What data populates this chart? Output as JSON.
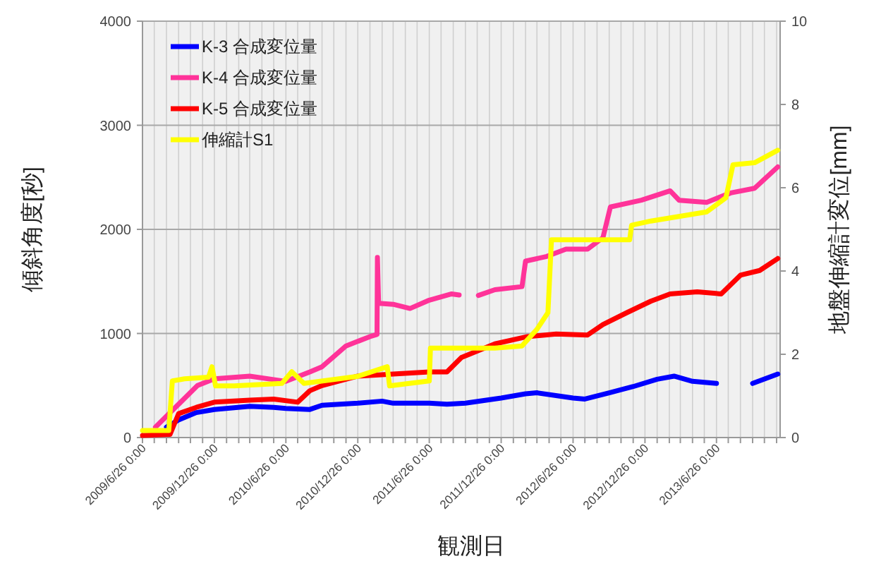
{
  "chart_data": {
    "type": "line",
    "xlabel": "観測日",
    "ylabel": "傾斜角度[秒]",
    "y2label": "地盤伸縮計変位[mm]",
    "xlim": [
      "2009-06-26",
      "2013-12-05"
    ],
    "xticks": [
      {
        "value": "2009-06-26",
        "label": "2009/6/26 0:00"
      },
      {
        "value": "2009-07-26",
        "label": null
      },
      {
        "value": "2009-08-26",
        "label": null
      },
      {
        "value": "2009-09-26",
        "label": null
      },
      {
        "value": "2009-10-26",
        "label": null
      },
      {
        "value": "2009-11-26",
        "label": null
      },
      {
        "value": "2009-12-26",
        "label": "2009/12/26 0:00"
      },
      {
        "value": "2010-01-26",
        "label": null
      },
      {
        "value": "2010-02-26",
        "label": null
      },
      {
        "value": "2010-03-26",
        "label": null
      },
      {
        "value": "2010-04-26",
        "label": null
      },
      {
        "value": "2010-05-26",
        "label": null
      },
      {
        "value": "2010-06-26",
        "label": "2010/6/26 0:00"
      },
      {
        "value": "2010-07-26",
        "label": null
      },
      {
        "value": "2010-08-26",
        "label": null
      },
      {
        "value": "2010-09-26",
        "label": null
      },
      {
        "value": "2010-10-26",
        "label": null
      },
      {
        "value": "2010-11-26",
        "label": null
      },
      {
        "value": "2010-12-26",
        "label": "2010/12/26 0:00"
      },
      {
        "value": "2011-01-26",
        "label": null
      },
      {
        "value": "2011-02-26",
        "label": null
      },
      {
        "value": "2011-03-26",
        "label": null
      },
      {
        "value": "2011-04-26",
        "label": null
      },
      {
        "value": "2011-05-26",
        "label": null
      },
      {
        "value": "2011-06-26",
        "label": "2011/6/26 0:00"
      },
      {
        "value": "2011-07-26",
        "label": null
      },
      {
        "value": "2011-08-26",
        "label": null
      },
      {
        "value": "2011-09-26",
        "label": null
      },
      {
        "value": "2011-10-26",
        "label": null
      },
      {
        "value": "2011-11-26",
        "label": null
      },
      {
        "value": "2011-12-26",
        "label": "2011/12/26 0:00"
      },
      {
        "value": "2012-01-26",
        "label": null
      },
      {
        "value": "2012-02-26",
        "label": null
      },
      {
        "value": "2012-03-26",
        "label": null
      },
      {
        "value": "2012-04-26",
        "label": null
      },
      {
        "value": "2012-05-26",
        "label": null
      },
      {
        "value": "2012-06-26",
        "label": "2012/6/26 0:00"
      },
      {
        "value": "2012-07-26",
        "label": null
      },
      {
        "value": "2012-08-26",
        "label": null
      },
      {
        "value": "2012-09-26",
        "label": null
      },
      {
        "value": "2012-10-26",
        "label": null
      },
      {
        "value": "2012-11-26",
        "label": null
      },
      {
        "value": "2012-12-26",
        "label": "2012/12/26 0:00"
      },
      {
        "value": "2013-01-26",
        "label": null
      },
      {
        "value": "2013-02-26",
        "label": null
      },
      {
        "value": "2013-03-26",
        "label": null
      },
      {
        "value": "2013-04-26",
        "label": null
      },
      {
        "value": "2013-05-26",
        "label": null
      },
      {
        "value": "2013-06-26",
        "label": "2013/6/26 0:00"
      },
      {
        "value": "2013-07-26",
        "label": null
      },
      {
        "value": "2013-08-26",
        "label": null
      },
      {
        "value": "2013-09-26",
        "label": null
      },
      {
        "value": "2013-10-26",
        "label": null
      },
      {
        "value": "2013-11-26",
        "label": null
      }
    ],
    "ylim": [
      0,
      4000
    ],
    "yticks": [
      0,
      1000,
      2000,
      3000,
      4000
    ],
    "y2lim": [
      0,
      10
    ],
    "y2ticks": [
      0,
      2,
      4,
      6,
      8,
      10
    ],
    "grid": true,
    "legend": "top left",
    "marker": "none",
    "line_style": "solid",
    "series": [
      {
        "name": "K-3 合成変位量",
        "color": "#0000ff",
        "x": [
          "2009-08-26",
          "2009-09-26",
          "2009-11-10",
          "2009-12-26",
          "2010-03-26",
          "2010-05-26",
          "2010-06-26",
          "2010-08-26",
          "2010-09-26",
          "2010-12-26",
          "2011-02-26",
          "2011-03-26",
          "2011-06-26",
          "2011-08-10",
          "2011-09-26",
          "2011-12-26",
          "2012-02-26",
          "2012-03-26",
          "2012-06-26",
          "2012-07-26",
          "2012-09-26",
          "2012-11-26",
          "2013-01-26",
          "2013-03-10",
          "2013-04-26",
          "2013-06-26",
          "2013-07-26",
          "2013-09-26",
          "2013-11-29"
        ],
        "values": [
          100,
          170,
          240,
          270,
          300,
          290,
          280,
          270,
          310,
          330,
          350,
          330,
          330,
          320,
          330,
          380,
          420,
          430,
          380,
          370,
          430,
          490,
          560,
          590,
          540,
          520,
          null,
          520,
          610
        ]
      },
      {
        "name": "K-4 合成変位量",
        "color": "#ff3399",
        "x": [
          "2009-07-29",
          "2009-11-13",
          "2009-12-26",
          "2010-03-26",
          "2010-06-26",
          "2010-08-26",
          "2010-09-26",
          "2010-11-26",
          "2011-01-26",
          "2011-02-13",
          "2011-02-14",
          "2011-02-17",
          "2011-03-26",
          "2011-05-08",
          "2011-06-26",
          "2011-08-22",
          "2011-09-10",
          "2011-09-26",
          "2011-10-29",
          "2011-12-10",
          "2012-02-17",
          "2012-02-26",
          "2012-04-20",
          "2012-06-08",
          "2012-08-02",
          "2012-09-10",
          "2012-09-29",
          "2012-12-17",
          "2013-02-28",
          "2013-03-23",
          "2013-06-01",
          "2013-08-01",
          "2013-10-01",
          "2013-11-29"
        ],
        "values": [
          100,
          500,
          565,
          590,
          540,
          630,
          680,
          880,
          970,
          990,
          1730,
          1290,
          1280,
          1240,
          1320,
          1380,
          1370,
          null,
          1365,
          1420,
          1450,
          1695,
          1740,
          1810,
          1810,
          1920,
          2215,
          2280,
          2370,
          2280,
          2260,
          2350,
          2395,
          2600
        ]
      },
      {
        "name": "K-5 合成変位量",
        "color": "#ff0000",
        "x": [
          "2009-06-26",
          "2009-09-04",
          "2009-09-26",
          "2009-11-10",
          "2009-12-26",
          "2010-03-26",
          "2010-05-26",
          "2010-07-26",
          "2010-08-26",
          "2010-09-26",
          "2010-12-26",
          "2011-03-26",
          "2011-06-26",
          "2011-08-10",
          "2011-09-16",
          "2011-12-10",
          "2012-03-02",
          "2012-05-14",
          "2012-08-02",
          "2012-09-10",
          "2012-11-10",
          "2013-01-10",
          "2013-02-28",
          "2013-05-08",
          "2013-07-08",
          "2013-08-26",
          "2013-10-14",
          "2013-11-29"
        ],
        "values": [
          20,
          30,
          230,
          290,
          340,
          360,
          370,
          340,
          450,
          500,
          590,
          610,
          630,
          630,
          770,
          900,
          970,
          995,
          985,
          1085,
          1200,
          1310,
          1380,
          1400,
          1380,
          1560,
          1605,
          1720
        ]
      },
      {
        "name": "伸縮計S1",
        "color": "#ffff00",
        "axis": "y2",
        "x": [
          "2009-06-26",
          "2009-09-01",
          "2009-09-10",
          "2009-10-11",
          "2009-12-11",
          "2009-12-20",
          "2009-12-29",
          "2010-02-15",
          "2010-06-16",
          "2010-07-11",
          "2010-08-11",
          "2010-12-26",
          "2011-03-11",
          "2011-03-17",
          "2011-06-26",
          "2011-06-29",
          "2011-12-10",
          "2012-02-17",
          "2012-03-26",
          "2012-04-23",
          "2012-05-02",
          "2012-11-17",
          "2012-11-22",
          "2013-01-10",
          "2013-06-01",
          "2013-07-20",
          "2013-08-07",
          "2013-10-01",
          "2013-11-29"
        ],
        "values": [
          0.17,
          0.17,
          1.36,
          1.41,
          1.45,
          1.7,
          1.24,
          1.24,
          1.3,
          1.58,
          1.3,
          1.47,
          1.7,
          1.24,
          1.36,
          2.15,
          2.15,
          2.2,
          2.6,
          3.0,
          4.75,
          4.75,
          5.1,
          5.2,
          5.42,
          5.76,
          6.55,
          6.6,
          6.9
        ]
      }
    ]
  }
}
